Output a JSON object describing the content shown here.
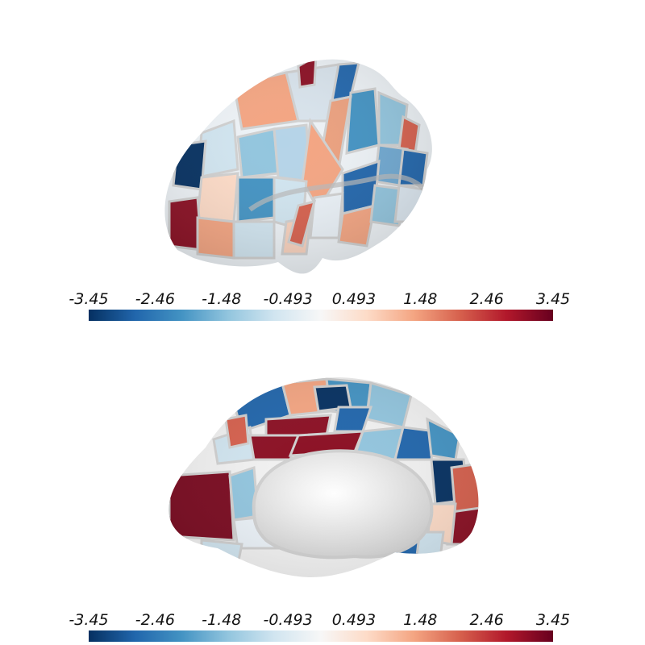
{
  "colormap": {
    "stops": [
      "#053061",
      "#2166ac",
      "#4393c3",
      "#92c5de",
      "#d1e5f0",
      "#f7f7f7",
      "#fddbc7",
      "#f4a582",
      "#d6604d",
      "#b2182b",
      "#67001f"
    ]
  },
  "colorbar_top": {
    "ticks": [
      "-3.45",
      "-2.46",
      "-1.48",
      "-0.493",
      "0.493",
      "1.48",
      "2.46",
      "3.45"
    ]
  },
  "colorbar_bottom": {
    "ticks": [
      "-3.45",
      "-2.46",
      "-1.48",
      "-0.493",
      "0.493",
      "1.48",
      "2.46",
      "3.45"
    ]
  },
  "views": {
    "top": "lateral-view",
    "bottom": "medial-view"
  }
}
